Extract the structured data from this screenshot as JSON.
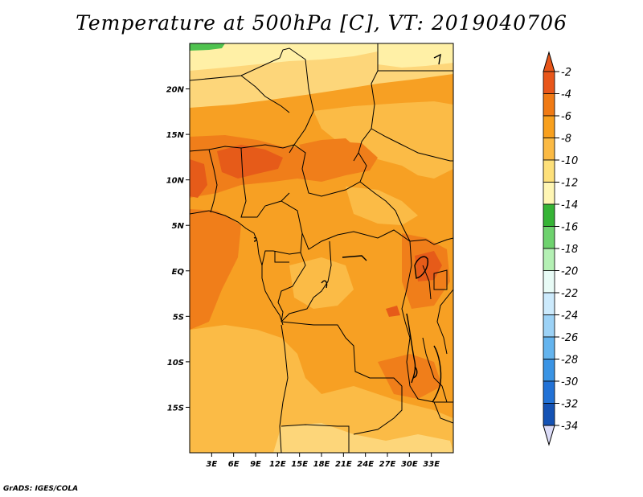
{
  "title": "Temperature at 500hPa [C], VT: 2019040706",
  "credit": "GrADS: IGES/COLA",
  "map": {
    "lon_range": [
      0,
      36
    ],
    "lat_range": [
      -20,
      25
    ],
    "lon_ticks": [
      {
        "value": 3,
        "label": "3E"
      },
      {
        "value": 6,
        "label": "6E"
      },
      {
        "value": 9,
        "label": "9E"
      },
      {
        "value": 12,
        "label": "12E"
      },
      {
        "value": 15,
        "label": "15E"
      },
      {
        "value": 18,
        "label": "18E"
      },
      {
        "value": 21,
        "label": "21E"
      },
      {
        "value": 24,
        "label": "24E"
      },
      {
        "value": 27,
        "label": "27E"
      },
      {
        "value": 30,
        "label": "30E"
      },
      {
        "value": 33,
        "label": "33E"
      }
    ],
    "lat_ticks": [
      {
        "value": 20,
        "label": "20N"
      },
      {
        "value": 15,
        "label": "15N"
      },
      {
        "value": 10,
        "label": "10N"
      },
      {
        "value": 5,
        "label": "5N"
      },
      {
        "value": 0,
        "label": "EQ"
      },
      {
        "value": -5,
        "label": "5S"
      },
      {
        "value": -10,
        "label": "10S"
      },
      {
        "value": -15,
        "label": "15S"
      }
    ],
    "fill_colors": {
      "base": "#f7a023",
      "warm": "#f07e1a",
      "hot": "#e65b19",
      "cool": "#fbbb46",
      "pale": "#fdd67a",
      "cream": "#fff0a6",
      "green": "#4fc24f"
    }
  },
  "colorbar": {
    "levels": [
      {
        "label": "-2",
        "color": "#e8561a"
      },
      {
        "label": "-4",
        "color": "#f07a14"
      },
      {
        "label": "-6",
        "color": "#f8a01e"
      },
      {
        "label": "-8",
        "color": "#fbba44"
      },
      {
        "label": "-10",
        "color": "#fde07a"
      },
      {
        "label": "-12",
        "color": "#fff6b4"
      },
      {
        "label": "-14",
        "color": "#36b436"
      },
      {
        "label": "-16",
        "color": "#6ed26e"
      },
      {
        "label": "-18",
        "color": "#b4f0b4"
      },
      {
        "label": "-20",
        "color": "#e8fbf6"
      },
      {
        "label": "-22",
        "color": "#cceafc"
      },
      {
        "label": "-24",
        "color": "#9cd2f6"
      },
      {
        "label": "-26",
        "color": "#64b4ee"
      },
      {
        "label": "-28",
        "color": "#3a94e4"
      },
      {
        "label": "-30",
        "color": "#2272d6"
      },
      {
        "label": "-32",
        "color": "#1452b4"
      },
      {
        "label": "-34",
        "color": "#0c2a8c"
      }
    ],
    "top_triangle_color": "#e8561a",
    "bottom_triangle_color": "#dcdcf8"
  }
}
